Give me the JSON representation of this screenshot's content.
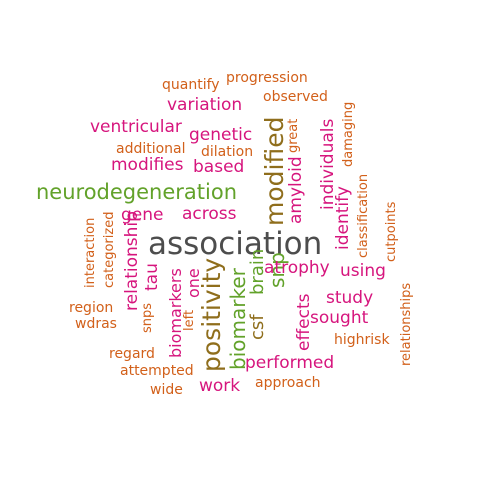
{
  "colors": {
    "dark": "#4d4d4d",
    "magenta": "#d6157d",
    "orange": "#d2601a",
    "green": "#62a22a",
    "olive": "#8f6e1c"
  },
  "words": [
    {
      "text": "association",
      "color": "dark"
    },
    {
      "text": "modified",
      "color": "olive"
    },
    {
      "text": "neurodegeneration",
      "color": "green"
    },
    {
      "text": "positivity",
      "color": "olive"
    },
    {
      "text": "biomarker",
      "color": "green"
    },
    {
      "text": "snp",
      "color": "green"
    },
    {
      "text": "csf",
      "color": "olive"
    },
    {
      "text": "brain",
      "color": "green"
    },
    {
      "text": "genetic",
      "color": "magenta"
    },
    {
      "text": "ventricular",
      "color": "magenta"
    },
    {
      "text": "variation",
      "color": "magenta"
    },
    {
      "text": "modifies",
      "color": "magenta"
    },
    {
      "text": "based",
      "color": "magenta"
    },
    {
      "text": "gene",
      "color": "magenta"
    },
    {
      "text": "across",
      "color": "magenta"
    },
    {
      "text": "amyloid",
      "color": "magenta"
    },
    {
      "text": "individuals",
      "color": "magenta"
    },
    {
      "text": "identify",
      "color": "magenta"
    },
    {
      "text": "atrophy",
      "color": "magenta"
    },
    {
      "text": "using",
      "color": "magenta"
    },
    {
      "text": "study",
      "color": "magenta"
    },
    {
      "text": "sought",
      "color": "magenta"
    },
    {
      "text": "effects",
      "color": "magenta"
    },
    {
      "text": "performed",
      "color": "magenta"
    },
    {
      "text": "work",
      "color": "magenta"
    },
    {
      "text": "relationship",
      "color": "magenta"
    },
    {
      "text": "tau",
      "color": "magenta"
    },
    {
      "text": "biomarkers",
      "color": "magenta"
    },
    {
      "text": "one",
      "color": "magenta"
    },
    {
      "text": "left",
      "color": "orange"
    },
    {
      "text": "quantify",
      "color": "orange"
    },
    {
      "text": "progression",
      "color": "orange"
    },
    {
      "text": "observed",
      "color": "orange"
    },
    {
      "text": "great",
      "color": "orange"
    },
    {
      "text": "damaging",
      "color": "orange"
    },
    {
      "text": "additional",
      "color": "orange"
    },
    {
      "text": "dilation",
      "color": "orange"
    },
    {
      "text": "classification",
      "color": "orange"
    },
    {
      "text": "cutpoints",
      "color": "orange"
    },
    {
      "text": "interaction",
      "color": "orange"
    },
    {
      "text": "categorized",
      "color": "orange"
    },
    {
      "text": "region",
      "color": "orange"
    },
    {
      "text": "wdras",
      "color": "orange"
    },
    {
      "text": "snps",
      "color": "orange"
    },
    {
      "text": "regard",
      "color": "orange"
    },
    {
      "text": "attempted",
      "color": "orange"
    },
    {
      "text": "wide",
      "color": "orange"
    },
    {
      "text": "approach",
      "color": "orange"
    },
    {
      "text": "highrisk",
      "color": "orange"
    },
    {
      "text": "relationships",
      "color": "orange"
    }
  ]
}
